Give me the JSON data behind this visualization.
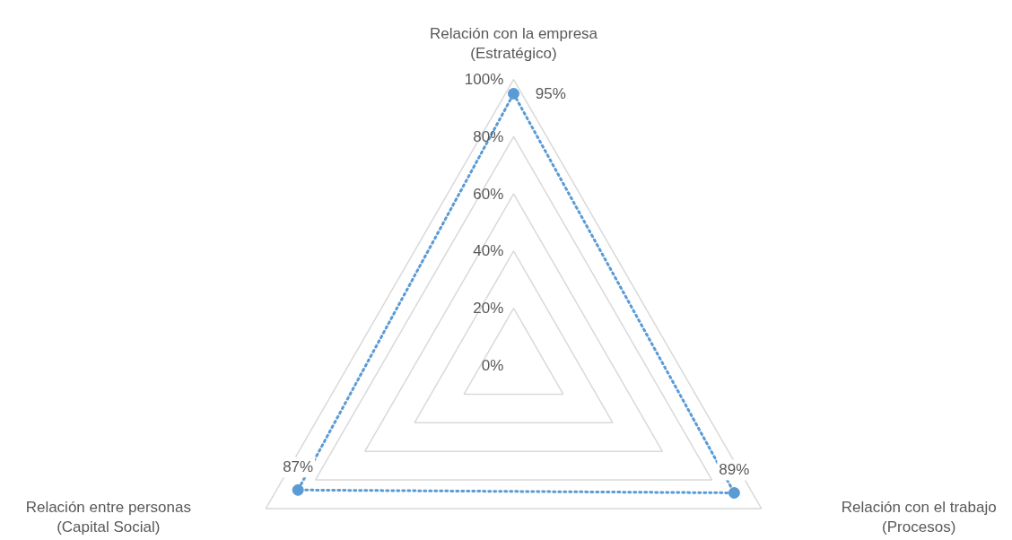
{
  "chart_data": {
    "type": "radar",
    "categories": [
      "Relación con la empresa\n(Estratégico)",
      "Relación con el trabajo\n(Procesos)",
      "Relación entre personas\n(Capital Social)"
    ],
    "series": [
      {
        "color": "#5b9bd5",
        "values": [
          95,
          89,
          87
        ],
        "value_labels": [
          "95%",
          "89%",
          "87%"
        ]
      }
    ],
    "ylim": [
      0,
      100
    ],
    "yticks": [
      {
        "value": 0,
        "label": "0%"
      },
      {
        "value": 20,
        "label": "20%"
      },
      {
        "value": 40,
        "label": "40%"
      },
      {
        "value": 60,
        "label": "60%"
      },
      {
        "value": 80,
        "label": "80%"
      },
      {
        "value": 100,
        "label": "100%"
      }
    ],
    "grid": true,
    "marker": "circle",
    "line_style": "dotted"
  }
}
